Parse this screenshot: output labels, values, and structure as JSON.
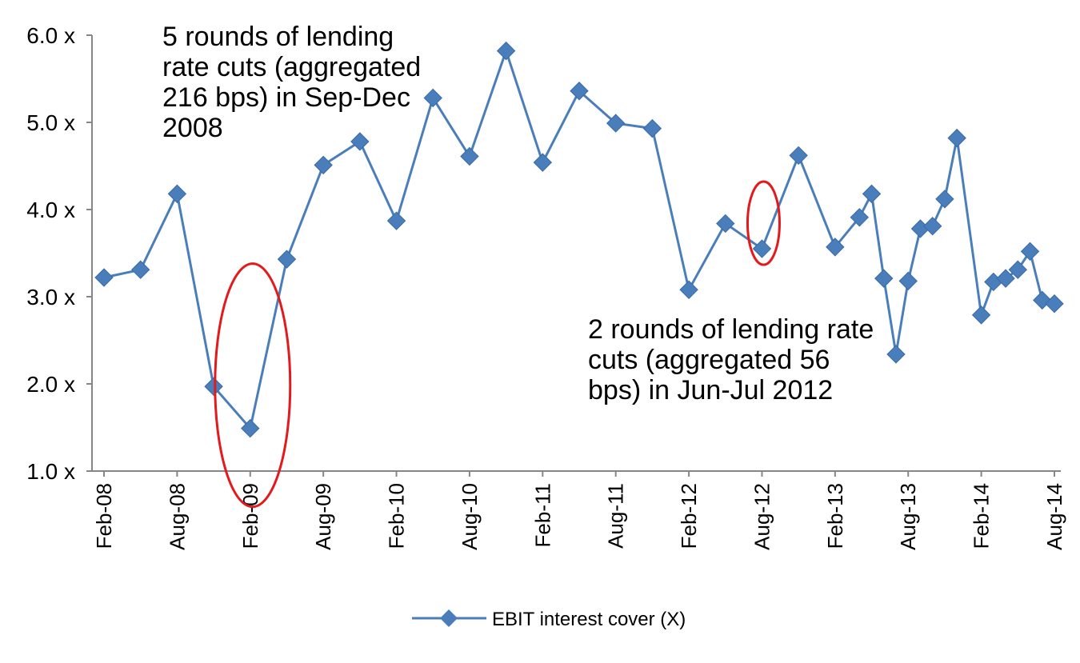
{
  "chart_data": {
    "type": "line",
    "x": [
      "Feb-08",
      "May-08",
      "Aug-08",
      "Nov-08",
      "Feb-09",
      "May-09",
      "Aug-09",
      "Nov-09",
      "Feb-10",
      "May-10",
      "Aug-10",
      "Nov-10",
      "Feb-11",
      "May-11",
      "Aug-11",
      "Nov-11",
      "Feb-12",
      "May-12",
      "Aug-12",
      "Nov-12",
      "Feb-13",
      "Apr-13",
      "May-13",
      "Jun-13",
      "Jul-13",
      "Aug-13",
      "Sep-13",
      "Oct-13",
      "Nov-13",
      "Dec-13",
      "Feb-14",
      "Mar-14",
      "Apr-14",
      "May-14",
      "Jun-14",
      "Jul-14",
      "Aug-14"
    ],
    "series": [
      {
        "name": "EBIT interest cover (X)",
        "color": "#4a7ebb",
        "values": [
          3.22,
          3.31,
          4.18,
          1.97,
          1.49,
          3.43,
          4.51,
          4.78,
          3.87,
          5.28,
          4.61,
          5.82,
          4.54,
          5.36,
          4.99,
          4.93,
          3.08,
          3.84,
          3.55,
          4.62,
          3.57,
          3.91,
          4.18,
          3.21,
          2.34,
          3.18,
          3.78,
          3.81,
          4.12,
          4.82,
          2.79,
          3.17,
          3.21,
          3.31,
          3.52,
          2.96,
          2.92
        ]
      }
    ],
    "ylim": [
      1.0,
      6.0
    ],
    "yticks": [
      "1.0 x",
      "2.0 x",
      "3.0 x",
      "4.0 x",
      "5.0 x",
      "6.0 x"
    ],
    "xticks": [
      "Feb-08",
      "Aug-08",
      "Feb-09",
      "Aug-09",
      "Feb-10",
      "Aug-10",
      "Feb-11",
      "Aug-11",
      "Feb-12",
      "Aug-12",
      "Feb-13",
      "Aug-13",
      "Feb-14",
      "Aug-14"
    ],
    "xlabel": "",
    "ylabel": "",
    "title": "",
    "grid": false,
    "legend": "bottom-center",
    "annotations": [
      {
        "lines": [
          "5 rounds of lending",
          "rate cuts (aggregated",
          "216 bps) in Sep-Dec",
          "2008"
        ]
      },
      {
        "lines": [
          "2 rounds of lending rate",
          "cuts (aggregated 56",
          "bps) in Jun-Jul 2012"
        ]
      }
    ],
    "highlight_color": "#e31a1c"
  }
}
